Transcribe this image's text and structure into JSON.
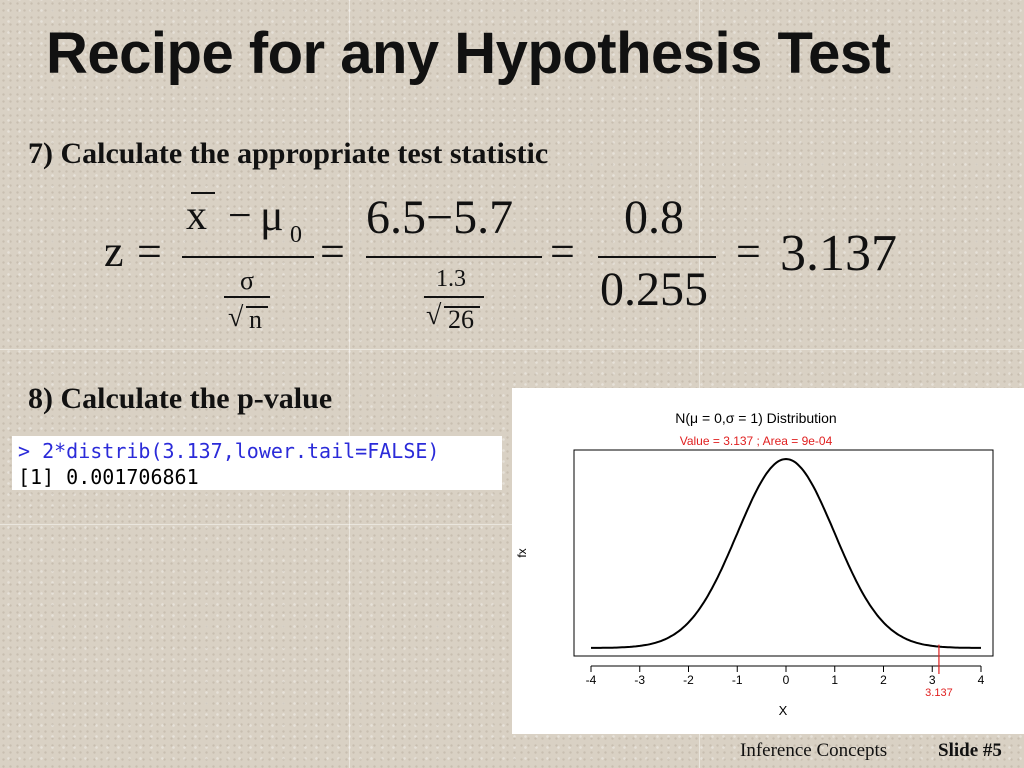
{
  "slide": {
    "title": "Recipe for any Hypothesis Test",
    "step7": "7)  Calculate the appropriate test statistic",
    "step8": "8)  Calculate the p-value",
    "footer_left": "Inference Concepts",
    "footer_right": "Slide #5"
  },
  "formula": {
    "z": "z",
    "eq": "=",
    "minus": "−",
    "xbar": "x",
    "mu": "μ",
    "mu_sub": "0",
    "sigma": "σ",
    "n": "n",
    "num2": "6.5−5.7",
    "den2_top": "1.3",
    "den2_sqrt": "26",
    "num3": "0.8",
    "den3": "0.255",
    "result": "3.137",
    "sqrt": "√"
  },
  "r_console": {
    "prompt": ">",
    "command": "2*distrib(3.137,lower.tail=FALSE)",
    "output": "[1] 0.001706861"
  },
  "chart_data": {
    "type": "line",
    "title": "N(μ = 0,σ = 1) Distribution",
    "subtitle": "Value = 3.137 ; Area = 9e-04",
    "xlabel": "X",
    "ylabel": "fx",
    "xlim": [
      -4,
      4
    ],
    "xticks": [
      "-4",
      "-3",
      "-2",
      "-1",
      "0",
      "1",
      "2",
      "3",
      "4"
    ],
    "series": [
      {
        "function": "normal_pdf",
        "mean": 0,
        "sd": 1
      }
    ],
    "marker": {
      "x": 3.137,
      "label": "3.137",
      "color": "#e02020"
    },
    "title_color": "#000000",
    "subtitle_color": "#e02020",
    "line_color": "#000000"
  }
}
